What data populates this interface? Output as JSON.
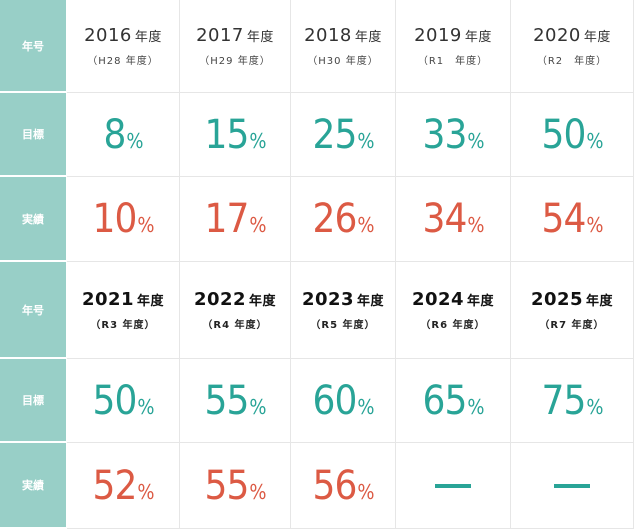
{
  "labels": {
    "year": "年号",
    "target": "目標",
    "actual": "実績",
    "percent": "%"
  },
  "colors": {
    "header_bg": "#98cfc7",
    "target": "#29a497",
    "actual": "#dc5a44"
  },
  "sections": [
    {
      "years": [
        {
          "year": "2016",
          "unit": "年度",
          "era": "（H28 年度）"
        },
        {
          "year": "2017",
          "unit": "年度",
          "era": "（H29 年度）"
        },
        {
          "year": "2018",
          "unit": "年度",
          "era": "（H30 年度）"
        },
        {
          "year": "2019",
          "unit": "年度",
          "era": "（R1　年度）"
        },
        {
          "year": "2020",
          "unit": "年度",
          "era": "（R2　年度）"
        }
      ],
      "targets": [
        "8",
        "15",
        "25",
        "33",
        "50"
      ],
      "actuals": [
        "10",
        "17",
        "26",
        "34",
        "54"
      ]
    },
    {
      "years": [
        {
          "year": "2021",
          "unit": "年度",
          "era": "（R3 年度）"
        },
        {
          "year": "2022",
          "unit": "年度",
          "era": "（R4 年度）"
        },
        {
          "year": "2023",
          "unit": "年度",
          "era": "（R5 年度）"
        },
        {
          "year": "2024",
          "unit": "年度",
          "era": "（R6 年度）"
        },
        {
          "year": "2025",
          "unit": "年度",
          "era": "（R7 年度）"
        }
      ],
      "targets": [
        "50",
        "55",
        "60",
        "65",
        "75"
      ],
      "actuals": [
        "52",
        "55",
        "56",
        "",
        ""
      ]
    }
  ]
}
